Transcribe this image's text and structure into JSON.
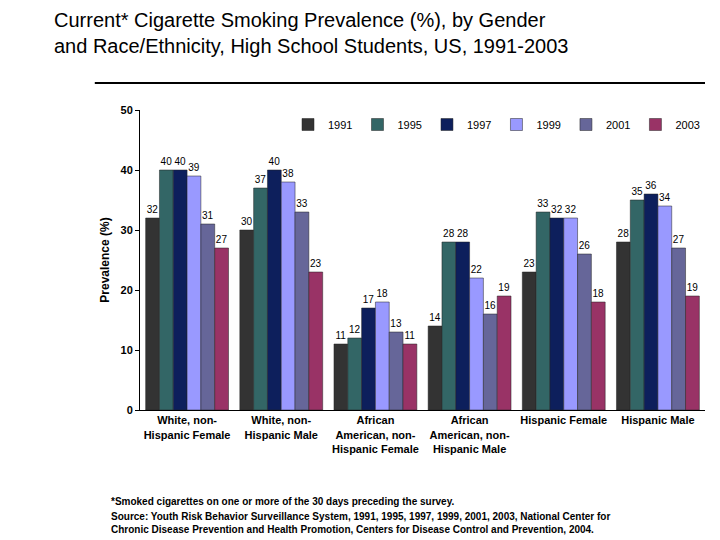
{
  "chart_data": {
    "type": "bar",
    "title": "Current* Cigarette Smoking Prevalence (%), by Gender\nand Race/Ethnicity, High School Students, US, 1991-2003",
    "y_label": "Prevalence (%)",
    "categories": [
      "White, non-\nHispanic Female",
      "White, non-\nHispanic Male",
      "African\nAmerican, non-\nHispanic Female",
      "African\nAmerican, non-\nHispanic Male",
      "Hispanic Female",
      "Hispanic Male"
    ],
    "series": [
      {
        "name": "1991",
        "color": "#333333",
        "values": [
          32,
          30,
          11,
          14,
          23,
          28
        ]
      },
      {
        "name": "1995",
        "color": "#336666",
        "values": [
          40,
          37,
          12,
          28,
          33,
          35
        ]
      },
      {
        "name": "1997",
        "color": "#0d1f5c",
        "values": [
          40,
          40,
          17,
          28,
          32,
          36
        ]
      },
      {
        "name": "1999",
        "color": "#9999ff",
        "values": [
          39,
          38,
          18,
          22,
          32,
          34
        ]
      },
      {
        "name": "2001",
        "color": "#666699",
        "values": [
          31,
          33,
          13,
          16,
          26,
          27
        ]
      },
      {
        "name": "2003",
        "color": "#993366",
        "values": [
          27,
          23,
          11,
          19,
          18,
          19
        ]
      }
    ],
    "ylim": [
      0,
      50
    ],
    "yticks": [
      0,
      10,
      20,
      30,
      40,
      50
    ],
    "grid": false,
    "legend": "top right",
    "data_labels": true,
    "annotations": [
      "*Smoked cigarettes on one or more of the 30 days preceding the survey.",
      "Source: Youth Risk Behavior Surveillance System, 1991, 1995, 1997, 1999, 2001, 2003, National Center for\nChronic Disease Prevention and Health Promotion, Centers for Disease Control and Prevention, 2004."
    ]
  }
}
